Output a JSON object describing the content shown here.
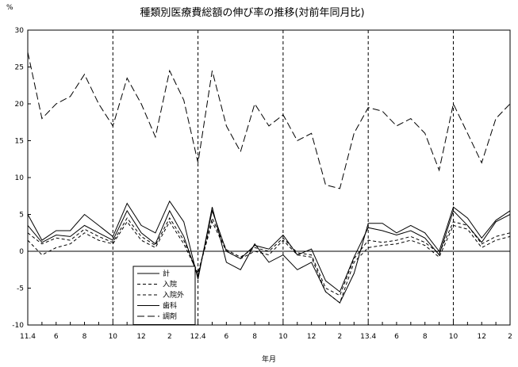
{
  "chart_data": {
    "type": "line",
    "title": "種類別医療費総額の伸び率の推移(対前年同月比)",
    "ylabel": "%",
    "xlabel": "年月",
    "ylim": [
      -10,
      30
    ],
    "y_ticks": [
      "30",
      "25",
      "20",
      "15",
      "10",
      "5",
      "0",
      "-5",
      "-10"
    ],
    "x_tick_labels": [
      "11.4",
      "6",
      "8",
      "10",
      "12",
      "2",
      "12.4",
      "6",
      "8",
      "10",
      "12",
      "2",
      "13.4",
      "6",
      "8",
      "10",
      "12",
      "2"
    ],
    "fiscal_year_dividers_after_month": [
      "10",
      "12.4",
      "10",
      "13.4",
      "10"
    ],
    "grid": false,
    "legend_position": "bottom-left",
    "x": [
      "11.4",
      "11.5",
      "11.6",
      "11.7",
      "11.8",
      "11.9",
      "11.10",
      "11.11",
      "11.12",
      "12.1",
      "12.2",
      "12.3",
      "12.4",
      "12.5",
      "12.6",
      "12.7",
      "12.8",
      "12.9",
      "12.10",
      "12.11",
      "12.12",
      "13.1",
      "13.2",
      "13.3",
      "13.4",
      "13.5",
      "13.6",
      "13.7",
      "13.8",
      "13.9",
      "13.10",
      "13.11",
      "13.12",
      "14.1",
      "14.2"
    ],
    "series": [
      {
        "name": "計",
        "style": "solid",
        "values": [
          3.5,
          1.2,
          2.2,
          2.0,
          3.5,
          2.5,
          1.5,
          5.5,
          2.5,
          1.0,
          5.5,
          2.0,
          -3.5,
          5.5,
          0,
          -1.0,
          0.8,
          0.3,
          2.2,
          -0.5,
          0.3,
          -4.0,
          -5.5,
          -0.8,
          3.2,
          2.8,
          2.2,
          2.8,
          1.8,
          -0.5,
          5.5,
          3.5,
          1.2,
          4.0,
          5.0
        ]
      },
      {
        "name": "入院",
        "style": "dash",
        "values": [
          2.5,
          1.0,
          1.8,
          1.5,
          3.0,
          2.0,
          1.2,
          4.5,
          2.0,
          0.8,
          4.5,
          1.5,
          -3.0,
          4.5,
          0.2,
          -0.8,
          0.5,
          0.0,
          1.8,
          -0.2,
          -0.5,
          -5.0,
          -6.0,
          -1.0,
          1.5,
          1.2,
          1.5,
          2.0,
          1.2,
          -0.3,
          4.0,
          3.5,
          1.0,
          2.0,
          2.5
        ]
      },
      {
        "name": "入院外",
        "style": "dash",
        "values": [
          1.5,
          -0.5,
          0.5,
          1.0,
          2.5,
          1.5,
          1.0,
          4.0,
          1.5,
          0.5,
          4.0,
          1.0,
          -3.0,
          4.0,
          0,
          -1.0,
          0.0,
          -0.5,
          1.5,
          -0.5,
          -0.8,
          -5.5,
          -7.0,
          -1.5,
          0.5,
          0.8,
          1.0,
          1.5,
          0.8,
          -0.8,
          3.5,
          3.0,
          0.5,
          1.5,
          2.0
        ]
      },
      {
        "name": "歯科",
        "style": "solid",
        "values": [
          5.0,
          1.5,
          2.8,
          2.8,
          5.0,
          3.5,
          2.0,
          6.5,
          3.5,
          2.5,
          6.8,
          4.0,
          -3.8,
          6.0,
          -1.5,
          -2.5,
          1.0,
          -1.5,
          -0.5,
          -2.5,
          -1.5,
          -5.5,
          -7.0,
          -3.0,
          3.8,
          3.8,
          2.5,
          3.5,
          2.5,
          0.0,
          6.0,
          4.5,
          1.8,
          4.2,
          5.5
        ]
      },
      {
        "name": "調剤",
        "style": "longdash",
        "values": [
          27.0,
          18.0,
          20.0,
          21.0,
          24.0,
          20.0,
          17.0,
          23.5,
          20.0,
          15.5,
          24.5,
          20.5,
          12.0,
          24.5,
          17.0,
          13.5,
          20.0,
          17.0,
          18.5,
          15.0,
          16.0,
          9.0,
          8.5,
          16.0,
          19.5,
          19.0,
          17.0,
          18.0,
          16.0,
          11.0,
          20.0,
          16.0,
          12.0,
          18.0,
          20.0
        ]
      }
    ]
  }
}
